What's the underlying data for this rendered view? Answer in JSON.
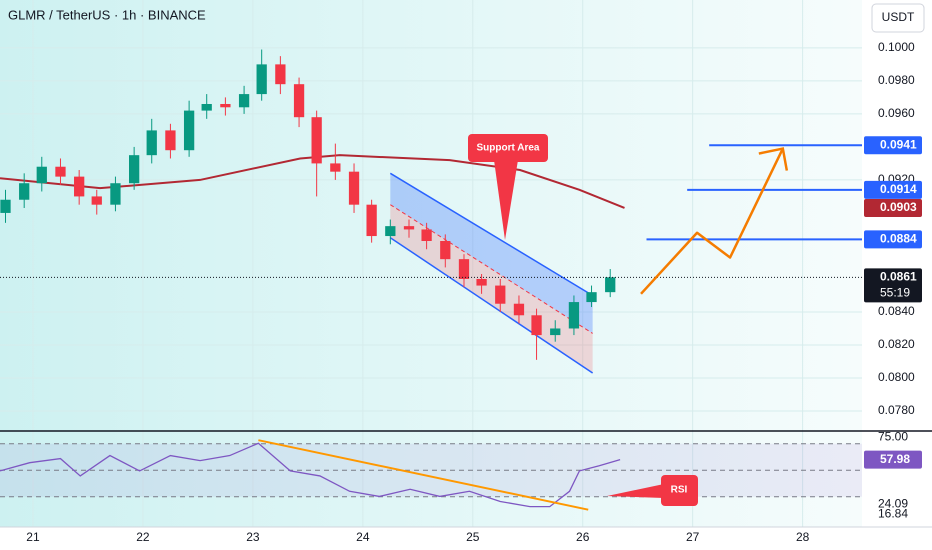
{
  "chart_data": {
    "type": "candlestick",
    "title": "GLMR / TetherUS · 1h · BINANCE",
    "currency": "USDT",
    "up_color": "#089981",
    "down_color": "#f23645",
    "xlim": [
      20.7,
      28.54
    ],
    "xticks": [
      21,
      22,
      23,
      24,
      25,
      26,
      27,
      28
    ],
    "ylim": [
      0.07685,
      0.1029
    ],
    "yticks": [
      {
        "value": 0.1,
        "label": "0.1000"
      },
      {
        "value": 0.098,
        "label": "0.0980"
      },
      {
        "value": 0.096,
        "label": "0.0960"
      },
      {
        "value": 0.092,
        "label": "0.0920"
      },
      {
        "value": 0.084,
        "label": "0.0840"
      },
      {
        "value": 0.082,
        "label": "0.0820"
      },
      {
        "value": 0.08,
        "label": "0.0800"
      },
      {
        "value": 0.078,
        "label": "0.0780"
      }
    ],
    "grid": true,
    "candles": {
      "x": [
        20.75,
        20.92,
        21.08,
        21.25,
        21.42,
        21.58,
        21.75,
        21.92,
        22.08,
        22.25,
        22.42,
        22.58,
        22.75,
        22.92,
        23.08,
        23.25,
        23.42,
        23.58,
        23.75,
        23.92,
        24.08,
        24.25,
        24.42,
        24.58,
        24.75,
        24.92,
        25.08,
        25.25,
        25.42,
        25.58,
        25.75,
        25.92,
        26.08,
        26.25
      ],
      "open": [
        0.09,
        0.0908,
        0.0918,
        0.0928,
        0.0922,
        0.091,
        0.0905,
        0.0918,
        0.0935,
        0.095,
        0.0938,
        0.0962,
        0.0966,
        0.0964,
        0.0972,
        0.099,
        0.0978,
        0.0958,
        0.093,
        0.0925,
        0.0905,
        0.0886,
        0.0892,
        0.089,
        0.0883,
        0.0872,
        0.086,
        0.0856,
        0.0845,
        0.0838,
        0.0826,
        0.083,
        0.0846,
        0.0852
      ],
      "high": [
        0.0914,
        0.0924,
        0.0934,
        0.0933,
        0.0926,
        0.0914,
        0.0922,
        0.094,
        0.0957,
        0.0954,
        0.0968,
        0.0972,
        0.097,
        0.0977,
        0.0999,
        0.0995,
        0.0982,
        0.0962,
        0.0942,
        0.093,
        0.0908,
        0.0896,
        0.0896,
        0.0894,
        0.0887,
        0.0875,
        0.0863,
        0.086,
        0.085,
        0.0842,
        0.0835,
        0.085,
        0.0856,
        0.0866
      ],
      "low": [
        0.0894,
        0.0903,
        0.0913,
        0.0917,
        0.0905,
        0.0899,
        0.0901,
        0.0914,
        0.093,
        0.0933,
        0.0934,
        0.0957,
        0.0959,
        0.096,
        0.0968,
        0.0972,
        0.0952,
        0.091,
        0.092,
        0.09,
        0.0882,
        0.0881,
        0.0885,
        0.0878,
        0.0867,
        0.0855,
        0.0851,
        0.084,
        0.0833,
        0.0811,
        0.0822,
        0.0826,
        0.0843,
        0.0849
      ],
      "close": [
        0.0908,
        0.0918,
        0.0928,
        0.0922,
        0.091,
        0.0905,
        0.0918,
        0.0935,
        0.095,
        0.0938,
        0.0962,
        0.0966,
        0.0964,
        0.0972,
        0.099,
        0.0978,
        0.0958,
        0.093,
        0.0925,
        0.0905,
        0.0886,
        0.0892,
        0.089,
        0.0883,
        0.0872,
        0.086,
        0.0856,
        0.0845,
        0.0838,
        0.0826,
        0.083,
        0.0846,
        0.0852,
        0.0861
      ]
    },
    "countdown": "55:19",
    "ma": {
      "color": "#b22833",
      "x": [
        20.7,
        21.61,
        22.52,
        23.43,
        23.79,
        24.79,
        25.43,
        25.97,
        26.38
      ],
      "values": [
        0.0921,
        0.0915,
        0.092,
        0.0933,
        0.0935,
        0.0932,
        0.0926,
        0.0914,
        0.0903
      ]
    },
    "levels": {
      "color": "#2962ff",
      "values": [
        0.0941,
        0.0914,
        0.0884
      ],
      "x": [
        27.15,
        26.95,
        26.58
      ]
    },
    "channel": {
      "x": [
        24.25,
        26.09
      ],
      "upper": [
        0.0924,
        0.085
      ],
      "middle": [
        0.0905,
        0.0827
      ],
      "lower": [
        0.0885,
        0.0803
      ]
    },
    "projection": {
      "color": "#f57c00",
      "x": [
        26.53,
        27.04,
        27.34,
        27.82
      ],
      "values": [
        0.0851,
        0.0888,
        0.0873,
        0.0939
      ]
    },
    "annotations": [
      "Support Area",
      "RSI"
    ],
    "rsi": {
      "color": "#7e57c2",
      "ylim": [
        7.1,
        78.9
      ],
      "yticks": [
        {
          "value": 75,
          "label": "75.00"
        },
        24.09,
        16.84
      ],
      "bands": [
        70,
        50,
        30
      ],
      "x": [
        20.7,
        20.97,
        21.25,
        21.43,
        21.7,
        21.97,
        22.25,
        22.52,
        22.79,
        23.05,
        23.34,
        23.61,
        23.88,
        24.15,
        24.43,
        24.7,
        24.97,
        25.25,
        25.52,
        25.7,
        25.88,
        25.97,
        26.15,
        26.34
      ],
      "values": [
        49.5,
        55.7,
        58.8,
        45.7,
        61.1,
        49.5,
        61.1,
        57.3,
        61.1,
        70.4,
        49.5,
        45.7,
        34.1,
        30.2,
        35.6,
        30.2,
        34.1,
        26.4,
        22.5,
        22.5,
        34.1,
        49.5,
        53.4,
        57.98
      ],
      "trend": {
        "color": "#ff9800",
        "x": [
          23.05,
          26.05
        ],
        "values": [
          72.7,
          20.2
        ]
      }
    }
  }
}
